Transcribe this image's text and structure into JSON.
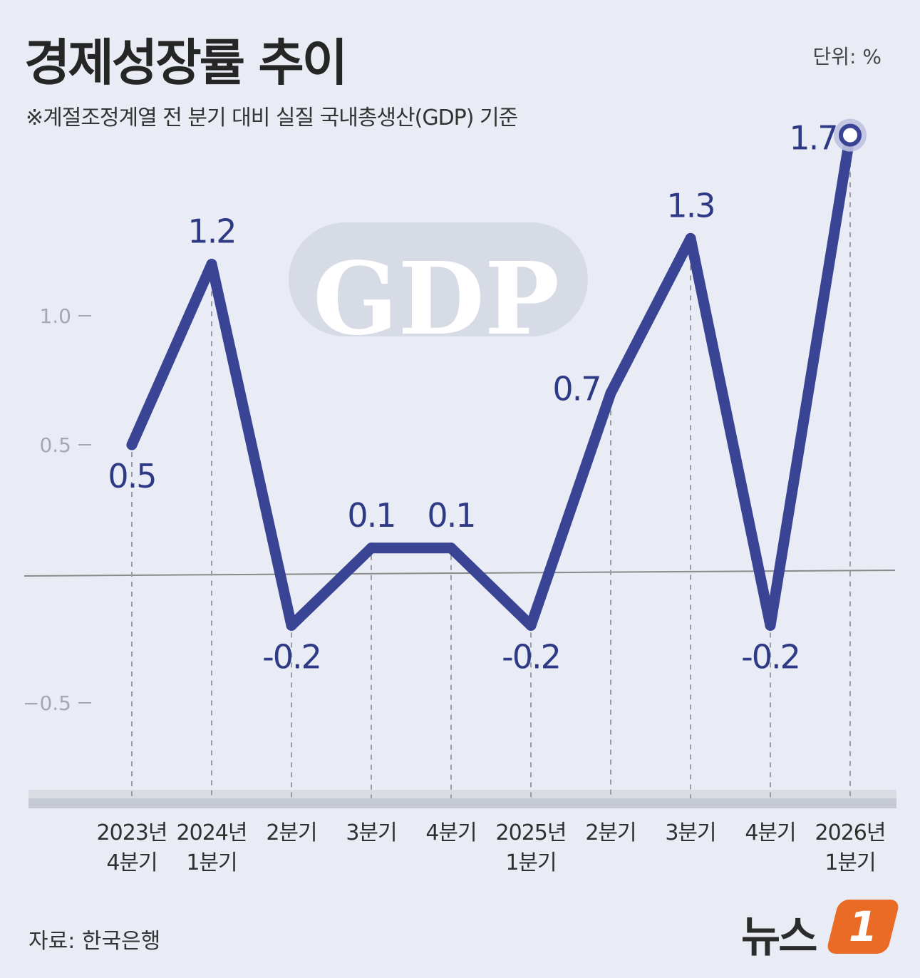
{
  "header": {
    "title": "경제성장률 추이",
    "subtitle": "※계절조정계열 전 분기 대비 실질 국내총생산(GDP) 기준",
    "unit": "단위: %"
  },
  "watermark": "GDP",
  "footer": {
    "source": "자료: 한국은행",
    "logo_text": "뉴스",
    "logo_badge": "1"
  },
  "colors": {
    "line": "#3a4494",
    "label": "#2f3a86",
    "background": "#e9ecf4"
  },
  "chart_data": {
    "type": "line",
    "categories": [
      [
        "2023년",
        "4분기"
      ],
      [
        "2024년",
        "1분기"
      ],
      [
        "2분기"
      ],
      [
        "3분기"
      ],
      [
        "4분기"
      ],
      [
        "2025년",
        "1분기"
      ],
      [
        "2분기"
      ],
      [
        "3분기"
      ],
      [
        "4분기"
      ],
      [
        "2026년",
        "1분기"
      ]
    ],
    "series": [
      {
        "values": [
          0.5,
          1.2,
          -0.2,
          0.1,
          0.1,
          -0.2,
          0.7,
          1.3,
          -0.2,
          1.7
        ]
      }
    ],
    "data_labels": [
      "0.5",
      "1.2",
      "-0.2",
      "0.1",
      "0.1",
      "-0.2",
      "0.7",
      "1.3",
      "-0.2",
      "1.7"
    ],
    "y_ticks": [
      1.0,
      0.5,
      -0.5
    ],
    "y_tick_labels": [
      "1.0",
      "0.5",
      "−0.5"
    ],
    "ylim": [
      -0.85,
      1.75
    ],
    "zero_line": true,
    "highlight_last": true
  }
}
